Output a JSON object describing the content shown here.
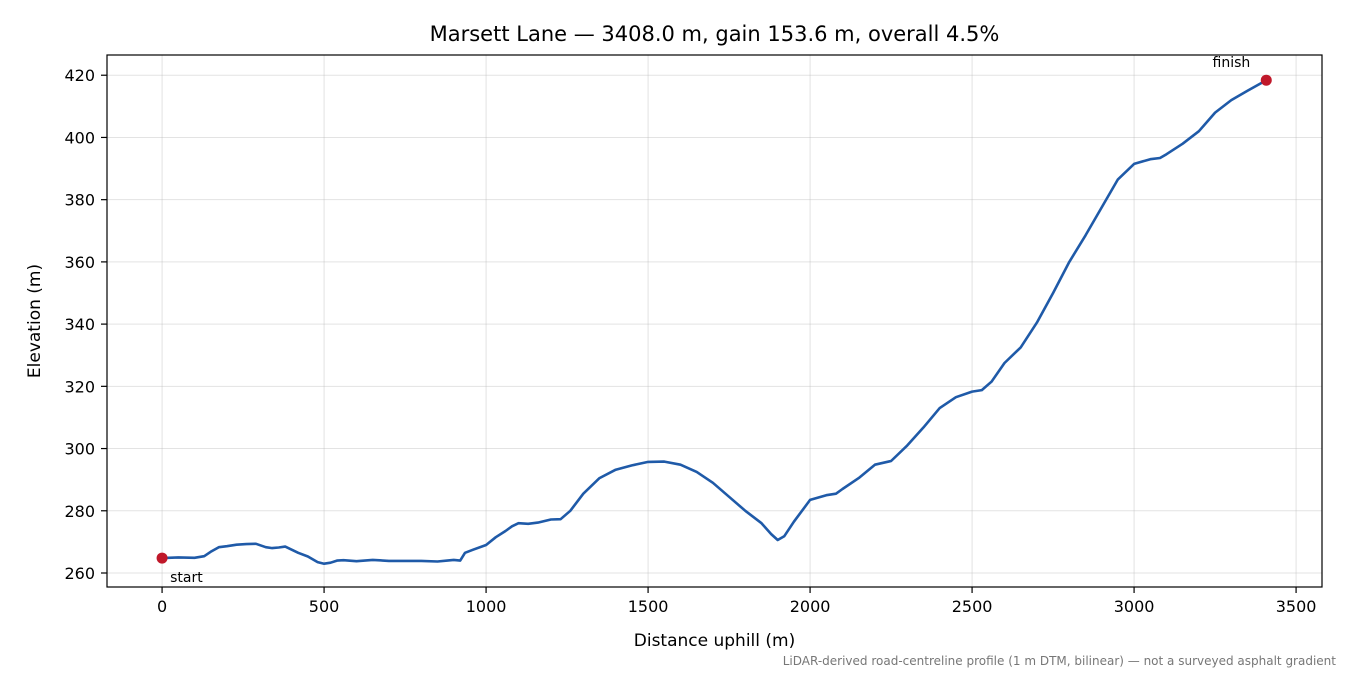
{
  "chart_data": {
    "type": "line",
    "title": "Marsett Lane — 3408.0 m, gain 153.6 m, overall 4.5%",
    "xlabel": "Distance uphill (m)",
    "ylabel": "Elevation (m)",
    "xlim": [
      -170,
      3580
    ],
    "ylim": [
      255.5,
      426.5
    ],
    "xticks": [
      0,
      500,
      1000,
      1500,
      2000,
      2500,
      3000,
      3500
    ],
    "yticks": [
      260,
      280,
      300,
      320,
      340,
      360,
      380,
      400,
      420
    ],
    "grid": true,
    "note": "LiDAR-derived road-centreline profile (1 m DTM, bilinear) — not a surveyed asphalt gradient",
    "colors": {
      "line": "#1f5aa8",
      "marker": "#c0182a"
    },
    "series": [
      {
        "x": [
          0,
          50,
          100,
          130,
          150,
          175,
          200,
          230,
          260,
          290,
          320,
          340,
          360,
          380,
          400,
          420,
          450,
          480,
          500,
          520,
          540,
          560,
          600,
          650,
          700,
          750,
          800,
          850,
          880,
          900,
          920,
          935,
          960,
          1000,
          1030,
          1060,
          1080,
          1100,
          1130,
          1160,
          1200,
          1230,
          1260,
          1300,
          1350,
          1400,
          1450,
          1500,
          1550,
          1600,
          1650,
          1700,
          1750,
          1800,
          1850,
          1880,
          1900,
          1920,
          1950,
          2000,
          2050,
          2080,
          2100,
          2150,
          2200,
          2250,
          2300,
          2350,
          2400,
          2450,
          2500,
          2530,
          2560,
          2600,
          2650,
          2700,
          2750,
          2800,
          2850,
          2900,
          2950,
          3000,
          3050,
          3080,
          3100,
          3150,
          3200,
          3250,
          3300,
          3350,
          3408
        ],
        "y": [
          264.8,
          265.0,
          264.9,
          265.4,
          266.8,
          268.3,
          268.6,
          269.1,
          269.3,
          269.4,
          268.3,
          268.0,
          268.2,
          268.5,
          267.5,
          266.5,
          265.3,
          263.5,
          263.0,
          263.3,
          264.0,
          264.1,
          263.8,
          264.2,
          263.9,
          263.9,
          263.9,
          263.7,
          264.0,
          264.2,
          264.0,
          266.5,
          267.5,
          269.0,
          271.5,
          273.5,
          275.0,
          276.0,
          275.8,
          276.2,
          277.2,
          277.3,
          280.0,
          285.5,
          290.5,
          293.2,
          294.6,
          295.7,
          295.8,
          294.8,
          292.5,
          289.0,
          284.5,
          280.0,
          276.0,
          272.5,
          270.6,
          271.8,
          276.5,
          283.5,
          285.0,
          285.5,
          287.0,
          290.5,
          294.8,
          296.0,
          301.0,
          306.8,
          313.0,
          316.5,
          318.3,
          318.8,
          321.5,
          327.5,
          332.5,
          340.5,
          350.0,
          360.0,
          368.5,
          377.5,
          386.5,
          391.5,
          393.0,
          393.4,
          394.6,
          398.0,
          402.0,
          408.0,
          412.0,
          415.0,
          418.4
        ]
      }
    ],
    "annotations": [
      {
        "label": "start",
        "x": 0,
        "y": 264.8
      },
      {
        "label": "finish",
        "x": 3408,
        "y": 418.4
      }
    ]
  }
}
